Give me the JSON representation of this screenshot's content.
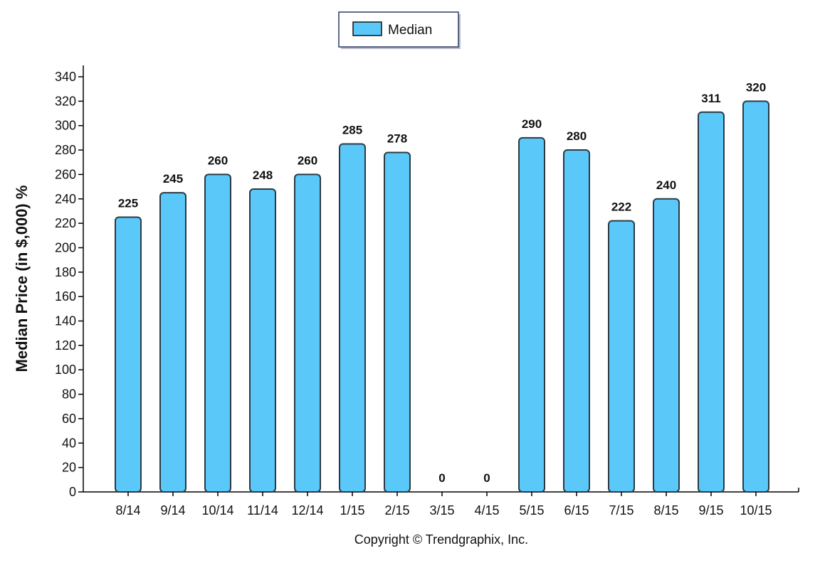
{
  "chart_data": {
    "type": "bar",
    "categories": [
      "8/14",
      "9/14",
      "10/14",
      "11/14",
      "12/14",
      "1/15",
      "2/15",
      "3/15",
      "4/15",
      "5/15",
      "6/15",
      "7/15",
      "8/15",
      "9/15",
      "10/15"
    ],
    "series": [
      {
        "name": "Median",
        "values": [
          225,
          245,
          260,
          248,
          260,
          285,
          278,
          0,
          0,
          290,
          280,
          222,
          240,
          311,
          320
        ]
      }
    ],
    "data_labels": [
      "225",
      "245",
      "260",
      "248",
      "260",
      "285",
      "278",
      "0",
      "0",
      "290",
      "280",
      "222",
      "240",
      "311",
      "320"
    ],
    "ylabel": "Median Price (in $,000) %",
    "xlabel": "",
    "ylim": [
      0,
      340
    ],
    "yticks": [
      0,
      20,
      40,
      60,
      80,
      100,
      120,
      140,
      160,
      180,
      200,
      220,
      240,
      260,
      280,
      300,
      320,
      340
    ],
    "legend": {
      "position": "top-center",
      "entries": [
        "Median"
      ]
    },
    "grid": false,
    "colors": {
      "bar_fill": "#5BC8FA",
      "bar_stroke": "#2a3a44",
      "axis": "#000000",
      "legend_border": "#2e3a66"
    }
  },
  "footer": {
    "copyright": "Copyright © Trendgraphix, Inc."
  }
}
